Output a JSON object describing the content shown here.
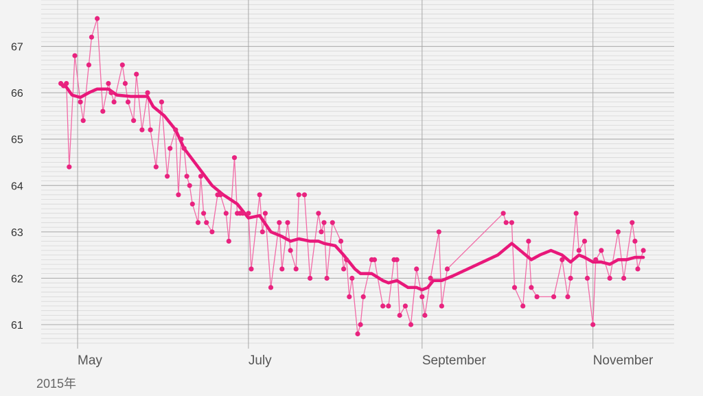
{
  "chart_data": {
    "type": "line",
    "year_label": "2015年",
    "x_axis": {
      "type": "date",
      "range": [
        "2015-04-18",
        "2015-11-30"
      ],
      "ticks": [
        {
          "date": "2015-05-01",
          "label": "May"
        },
        {
          "date": "2015-07-01",
          "label": "July"
        },
        {
          "date": "2015-09-01",
          "label": "September"
        },
        {
          "date": "2015-11-01",
          "label": "November"
        }
      ]
    },
    "y_axis": {
      "range": [
        60.6,
        68.0
      ],
      "ticks": [
        61,
        62,
        63,
        64,
        65,
        66,
        67
      ],
      "minor_step": 0.1
    },
    "grid": true,
    "colors": {
      "points": "#e8237f",
      "raw_line": "#f26aa6",
      "trend_line": "#e8187a",
      "major_grid": "#a8a8a8",
      "minor_grid": "#d6d6d6",
      "background": "#f3f3f3"
    },
    "series": [
      {
        "kind": "daily",
        "points": [
          [
            "2015-04-25",
            66.2
          ],
          [
            "2015-04-26",
            66.15
          ],
          [
            "2015-04-27",
            66.2
          ],
          [
            "2015-04-28",
            64.4
          ],
          [
            "2015-04-30",
            66.8
          ],
          [
            "2015-05-02",
            65.8
          ],
          [
            "2015-05-03",
            65.4
          ],
          [
            "2015-05-05",
            66.6
          ],
          [
            "2015-05-06",
            67.2
          ],
          [
            "2015-05-08",
            67.6
          ],
          [
            "2015-05-10",
            65.6
          ],
          [
            "2015-05-12",
            66.2
          ],
          [
            "2015-05-13",
            66.0
          ],
          [
            "2015-05-14",
            65.8
          ],
          [
            "2015-05-17",
            66.6
          ],
          [
            "2015-05-18",
            66.2
          ],
          [
            "2015-05-19",
            65.8
          ],
          [
            "2015-05-21",
            65.4
          ],
          [
            "2015-05-22",
            66.4
          ],
          [
            "2015-05-24",
            65.2
          ],
          [
            "2015-05-26",
            66.0
          ],
          [
            "2015-05-27",
            65.2
          ],
          [
            "2015-05-29",
            64.4
          ],
          [
            "2015-05-31",
            65.8
          ],
          [
            "2015-06-02",
            64.2
          ],
          [
            "2015-06-03",
            64.8
          ],
          [
            "2015-06-05",
            65.2
          ],
          [
            "2015-06-06",
            63.8
          ],
          [
            "2015-06-07",
            65.0
          ],
          [
            "2015-06-08",
            64.8
          ],
          [
            "2015-06-09",
            64.2
          ],
          [
            "2015-06-10",
            64.0
          ],
          [
            "2015-06-11",
            63.6
          ],
          [
            "2015-06-13",
            63.2
          ],
          [
            "2015-06-14",
            64.2
          ],
          [
            "2015-06-15",
            63.4
          ],
          [
            "2015-06-16",
            63.2
          ],
          [
            "2015-06-18",
            63.0
          ],
          [
            "2015-06-20",
            63.8
          ],
          [
            "2015-06-21",
            63.8
          ],
          [
            "2015-06-23",
            63.4
          ],
          [
            "2015-06-24",
            62.8
          ],
          [
            "2015-06-26",
            64.6
          ],
          [
            "2015-06-27",
            63.4
          ],
          [
            "2015-06-28",
            63.4
          ],
          [
            "2015-06-29",
            63.4
          ],
          [
            "2015-07-01",
            63.4
          ],
          [
            "2015-07-02",
            62.2
          ],
          [
            "2015-07-05",
            63.8
          ],
          [
            "2015-07-06",
            63.0
          ],
          [
            "2015-07-07",
            63.4
          ],
          [
            "2015-07-09",
            61.8
          ],
          [
            "2015-07-12",
            63.2
          ],
          [
            "2015-07-13",
            62.2
          ],
          [
            "2015-07-15",
            63.2
          ],
          [
            "2015-07-16",
            62.6
          ],
          [
            "2015-07-18",
            62.2
          ],
          [
            "2015-07-19",
            63.8
          ],
          [
            "2015-07-21",
            63.8
          ],
          [
            "2015-07-23",
            62.0
          ],
          [
            "2015-07-26",
            63.4
          ],
          [
            "2015-07-27",
            63.0
          ],
          [
            "2015-07-28",
            63.2
          ],
          [
            "2015-07-29",
            62.0
          ],
          [
            "2015-07-31",
            63.2
          ],
          [
            "2015-08-03",
            62.8
          ],
          [
            "2015-08-04",
            62.2
          ],
          [
            "2015-08-05",
            62.4
          ],
          [
            "2015-08-06",
            61.6
          ],
          [
            "2015-08-07",
            62.0
          ],
          [
            "2015-08-09",
            60.8
          ],
          [
            "2015-08-10",
            61.0
          ],
          [
            "2015-08-11",
            61.6
          ],
          [
            "2015-08-14",
            62.4
          ],
          [
            "2015-08-15",
            62.4
          ],
          [
            "2015-08-18",
            61.4
          ],
          [
            "2015-08-20",
            61.4
          ],
          [
            "2015-08-22",
            62.4
          ],
          [
            "2015-08-23",
            62.4
          ],
          [
            "2015-08-24",
            61.2
          ],
          [
            "2015-08-26",
            61.4
          ],
          [
            "2015-08-28",
            61.0
          ],
          [
            "2015-08-30",
            62.2
          ],
          [
            "2015-09-01",
            61.6
          ],
          [
            "2015-09-02",
            61.2
          ],
          [
            "2015-09-04",
            62.0
          ],
          [
            "2015-09-07",
            63.0
          ],
          [
            "2015-09-08",
            61.4
          ],
          [
            "2015-09-10",
            62.2
          ],
          [
            "2015-09-30",
            63.4
          ],
          [
            "2015-10-01",
            63.2
          ],
          [
            "2015-10-03",
            63.2
          ],
          [
            "2015-10-04",
            61.8
          ],
          [
            "2015-10-07",
            61.4
          ],
          [
            "2015-10-09",
            62.8
          ],
          [
            "2015-10-10",
            61.8
          ],
          [
            "2015-10-12",
            61.6
          ],
          [
            "2015-10-18",
            61.6
          ],
          [
            "2015-10-21",
            62.4
          ],
          [
            "2015-10-23",
            61.6
          ],
          [
            "2015-10-24",
            62.0
          ],
          [
            "2015-10-26",
            63.4
          ],
          [
            "2015-10-27",
            62.6
          ],
          [
            "2015-10-29",
            62.8
          ],
          [
            "2015-10-30",
            62.0
          ],
          [
            "2015-11-01",
            61.0
          ],
          [
            "2015-11-02",
            62.4
          ],
          [
            "2015-11-04",
            62.6
          ],
          [
            "2015-11-07",
            62.0
          ],
          [
            "2015-11-10",
            63.0
          ],
          [
            "2015-11-12",
            62.0
          ],
          [
            "2015-11-15",
            63.2
          ],
          [
            "2015-11-16",
            62.8
          ],
          [
            "2015-11-17",
            62.2
          ],
          [
            "2015-11-19",
            62.6
          ]
        ]
      },
      {
        "kind": "moving-average",
        "points": [
          [
            "2015-04-25",
            66.18
          ],
          [
            "2015-04-27",
            66.12
          ],
          [
            "2015-04-29",
            65.95
          ],
          [
            "2015-05-02",
            65.9
          ],
          [
            "2015-05-05",
            66.0
          ],
          [
            "2015-05-08",
            66.08
          ],
          [
            "2015-05-12",
            66.08
          ],
          [
            "2015-05-15",
            65.95
          ],
          [
            "2015-05-20",
            65.92
          ],
          [
            "2015-05-26",
            65.92
          ],
          [
            "2015-05-28",
            65.7
          ],
          [
            "2015-06-01",
            65.5
          ],
          [
            "2015-06-05",
            65.2
          ],
          [
            "2015-06-08",
            64.8
          ],
          [
            "2015-06-13",
            64.4
          ],
          [
            "2015-06-18",
            64.0
          ],
          [
            "2015-06-22",
            63.8
          ],
          [
            "2015-06-27",
            63.6
          ],
          [
            "2015-07-01",
            63.3
          ],
          [
            "2015-07-05",
            63.35
          ],
          [
            "2015-07-09",
            63.0
          ],
          [
            "2015-07-13",
            62.9
          ],
          [
            "2015-07-16",
            62.8
          ],
          [
            "2015-07-19",
            62.85
          ],
          [
            "2015-07-23",
            62.8
          ],
          [
            "2015-07-26",
            62.8
          ],
          [
            "2015-07-28",
            62.75
          ],
          [
            "2015-08-01",
            62.7
          ],
          [
            "2015-08-04",
            62.5
          ],
          [
            "2015-08-08",
            62.2
          ],
          [
            "2015-08-10",
            62.1
          ],
          [
            "2015-08-14",
            62.1
          ],
          [
            "2015-08-18",
            61.95
          ],
          [
            "2015-08-20",
            61.9
          ],
          [
            "2015-08-23",
            61.95
          ],
          [
            "2015-08-27",
            61.8
          ],
          [
            "2015-08-30",
            61.8
          ],
          [
            "2015-09-01",
            61.75
          ],
          [
            "2015-09-03",
            61.8
          ],
          [
            "2015-09-05",
            61.95
          ],
          [
            "2015-09-08",
            61.95
          ],
          [
            "2015-09-12",
            62.05
          ],
          [
            "2015-09-28",
            62.5
          ],
          [
            "2015-10-03",
            62.75
          ],
          [
            "2015-10-07",
            62.55
          ],
          [
            "2015-10-10",
            62.4
          ],
          [
            "2015-10-13",
            62.5
          ],
          [
            "2015-10-17",
            62.6
          ],
          [
            "2015-10-21",
            62.5
          ],
          [
            "2015-10-24",
            62.35
          ],
          [
            "2015-10-27",
            62.5
          ],
          [
            "2015-10-29",
            62.45
          ],
          [
            "2015-11-01",
            62.35
          ],
          [
            "2015-11-04",
            62.35
          ],
          [
            "2015-11-07",
            62.3
          ],
          [
            "2015-11-10",
            62.4
          ],
          [
            "2015-11-13",
            62.4
          ],
          [
            "2015-11-16",
            62.45
          ],
          [
            "2015-11-19",
            62.45
          ]
        ]
      }
    ]
  }
}
